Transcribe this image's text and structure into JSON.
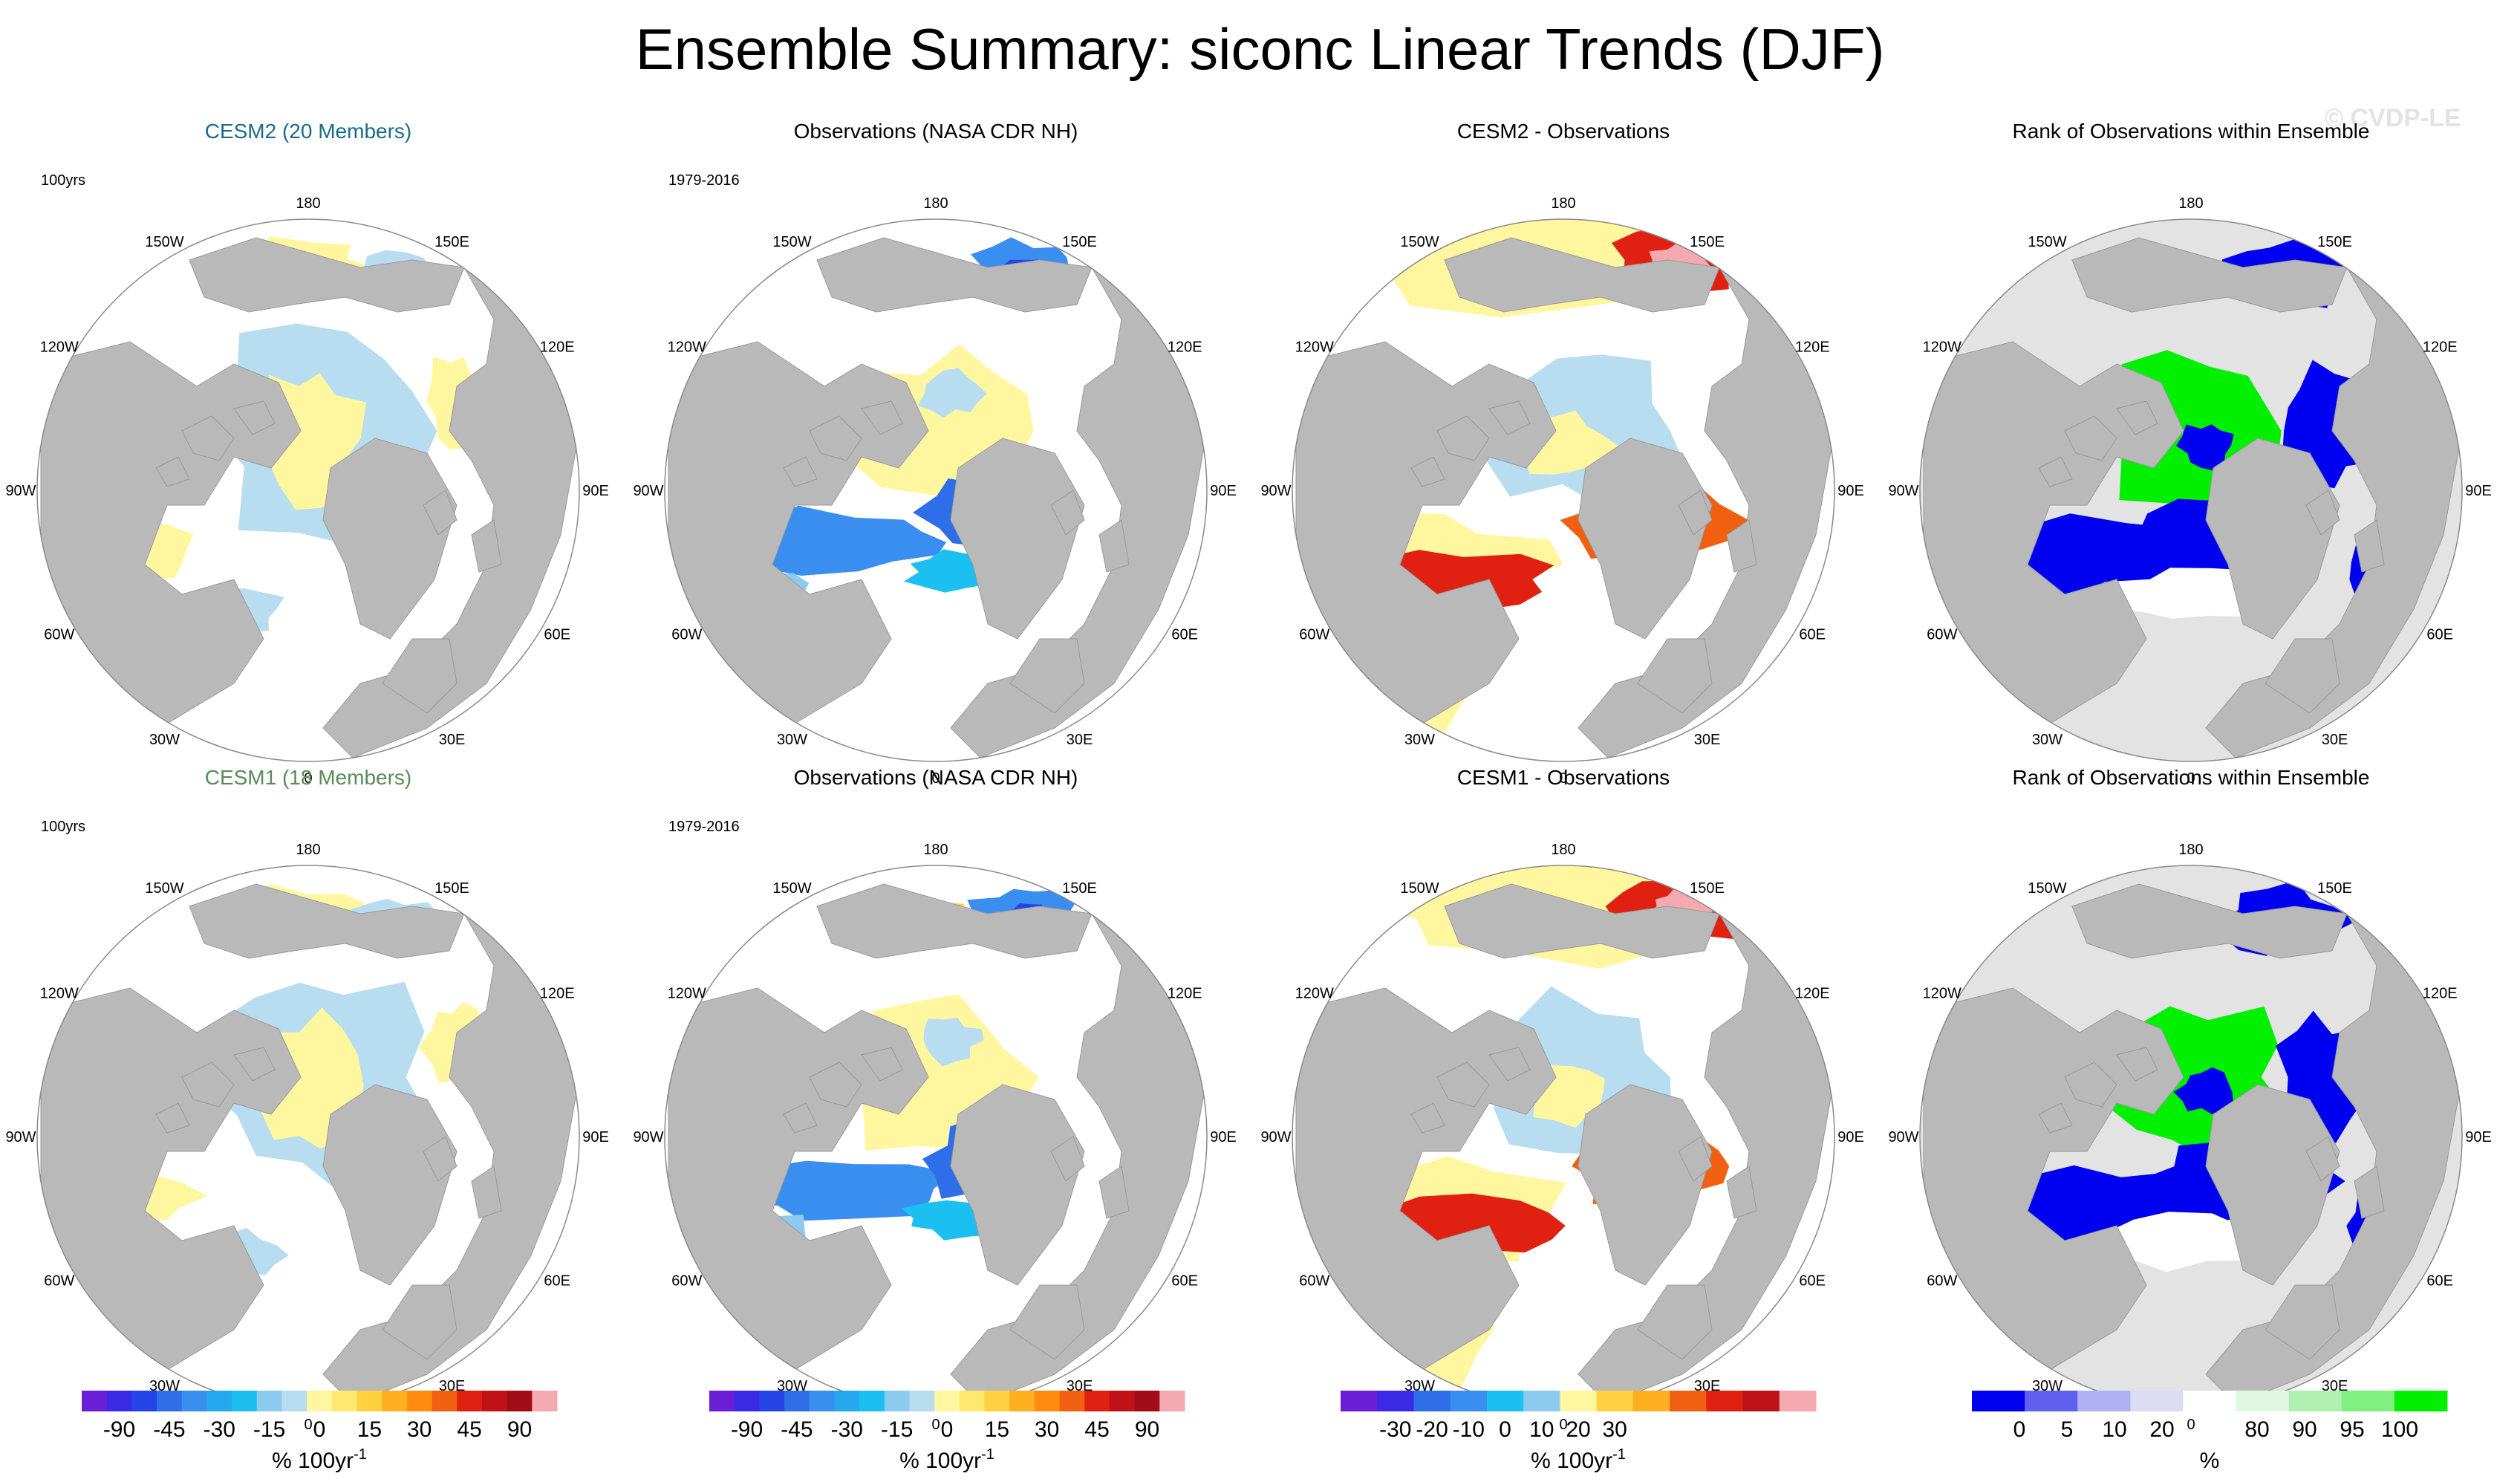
{
  "title": "Ensemble Summary: siconc Linear Trends (DJF)",
  "watermark": "© CVDP-LE",
  "colors": {
    "land": "#b9b9b9",
    "ocean": "#ffffff",
    "rank_ocean": "#e3e3e3",
    "cesm2_title": "#1a6a8c",
    "cesm1_title": "#5a8a5a"
  },
  "lon_labels": [
    "180",
    "150E",
    "120E",
    "90E",
    "60E",
    "30E",
    "0",
    "30W",
    "60W",
    "90W",
    "120W",
    "150W"
  ],
  "panels": [
    {
      "id": "cesm2-ensemble",
      "row": 0,
      "col": 0,
      "title": "CESM2 (20 Members)",
      "title_color": "#1a6a8c",
      "period": "100yrs",
      "map_style": "model"
    },
    {
      "id": "obs-1",
      "row": 0,
      "col": 1,
      "title": "Observations (NASA CDR NH)",
      "title_color": "#000000",
      "period": "1979-2016",
      "map_style": "obs"
    },
    {
      "id": "cesm2-minus-obs",
      "row": 0,
      "col": 2,
      "title": "CESM2 - Observations",
      "title_color": "#000000",
      "period": "",
      "map_style": "diff"
    },
    {
      "id": "rank-1",
      "row": 0,
      "col": 3,
      "title": "Rank of Observations within Ensemble",
      "title_color": "#000000",
      "period": "",
      "map_style": "rank"
    },
    {
      "id": "cesm1-ensemble",
      "row": 1,
      "col": 0,
      "title": "CESM1 (18 Members)",
      "title_color": "#5a8a5a",
      "period": "100yrs",
      "map_style": "model"
    },
    {
      "id": "obs-2",
      "row": 1,
      "col": 1,
      "title": "Observations (NASA CDR NH)",
      "title_color": "#000000",
      "period": "1979-2016",
      "map_style": "obs"
    },
    {
      "id": "cesm1-minus-obs",
      "row": 1,
      "col": 2,
      "title": "CESM1 - Observations",
      "title_color": "#000000",
      "period": "",
      "map_style": "diff"
    },
    {
      "id": "rank-2",
      "row": 1,
      "col": 3,
      "title": "Rank of Observations within Ensemble",
      "title_color": "#000000",
      "period": "",
      "map_style": "rank"
    }
  ],
  "colorbars": [
    {
      "id": "trend-cb-1",
      "colors": [
        "#6a1fd6",
        "#3a2ae6",
        "#2444e8",
        "#2e6ee8",
        "#3a8ef0",
        "#26a8f0",
        "#1cc0f0",
        "#8ccaf0",
        "#b8dcf0",
        "#fff7a0",
        "#ffe870",
        "#ffd040",
        "#ffb020",
        "#ff8c10",
        "#f06010",
        "#e02010",
        "#c01018",
        "#a00c18",
        "#f4a8b0"
      ],
      "labels": [
        "-90",
        "-45",
        "-30",
        "-15",
        "0",
        "15",
        "30",
        "45",
        "90"
      ],
      "label_positions": [
        1,
        3,
        5,
        7,
        9,
        11,
        13,
        15,
        17
      ],
      "unit": "% 100yr",
      "unit_sup": "-1"
    },
    {
      "id": "trend-cb-2",
      "colors": [
        "#6a1fd6",
        "#3a2ae6",
        "#2444e8",
        "#2e6ee8",
        "#3a8ef0",
        "#26a8f0",
        "#1cc0f0",
        "#8ccaf0",
        "#b8dcf0",
        "#fff7a0",
        "#ffe870",
        "#ffd040",
        "#ffb020",
        "#ff8c10",
        "#f06010",
        "#e02010",
        "#c01018",
        "#a00c18",
        "#f4a8b0"
      ],
      "labels": [
        "-90",
        "-45",
        "-30",
        "-15",
        "0",
        "15",
        "30",
        "45",
        "90"
      ],
      "label_positions": [
        1,
        3,
        5,
        7,
        9,
        11,
        13,
        15,
        17
      ],
      "unit": "% 100yr",
      "unit_sup": "-1"
    },
    {
      "id": "diff-cb",
      "colors": [
        "#6a1fd6",
        "#3a2ae6",
        "#2e6ee8",
        "#3a8ef0",
        "#1cc0f0",
        "#8ccaf0",
        "#fff7a0",
        "#ffd040",
        "#ffb020",
        "#f06010",
        "#e02010",
        "#c01018",
        "#f4a8b0"
      ],
      "labels": [
        "-30",
        "-20",
        "-10",
        "0",
        "10",
        "20",
        "30"
      ],
      "label_positions": [
        1,
        2,
        3,
        4,
        5,
        6,
        7
      ],
      "unit": "% 100yr",
      "unit_sup": "-1"
    },
    {
      "id": "rank-cb",
      "colors": [
        "#0000f0",
        "#6060f0",
        "#b0b0f4",
        "#dcdcf4",
        "#ffffff",
        "#e0f8e0",
        "#b0f0b0",
        "#80f080",
        "#00f000"
      ],
      "labels": [
        "0",
        "5",
        "10",
        "20",
        "80",
        "90",
        "95",
        "100"
      ],
      "label_positions": [
        0.5,
        1,
        1.5,
        2,
        3,
        3.5,
        4,
        4.5
      ],
      "unit": "%",
      "unit_sup": ""
    }
  ]
}
